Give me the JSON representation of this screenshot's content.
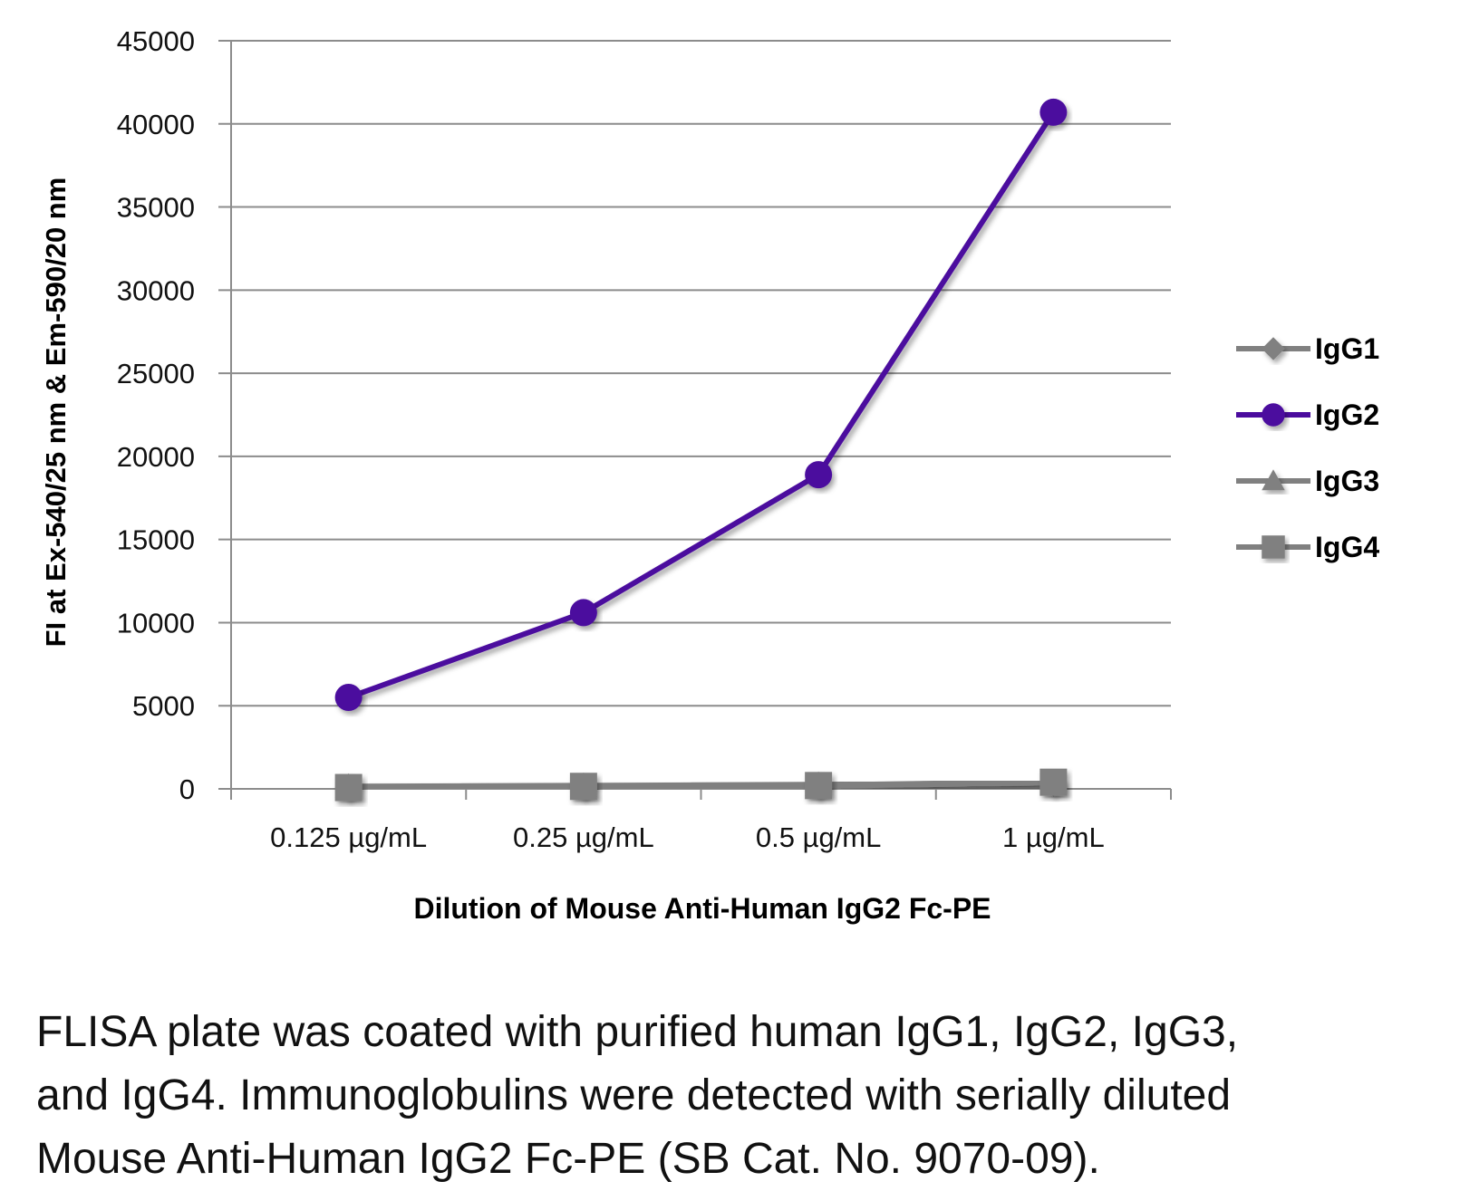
{
  "chart_data": {
    "type": "line",
    "title": "",
    "xlabel": "Dilution of Mouse Anti-Human IgG2 Fc-PE",
    "ylabel": "FI at Ex-540/25 nm & Em-590/20 nm",
    "categories": [
      "0.125 µg/mL",
      "0.25 µg/mL",
      "0.5 µg/mL",
      "1 µg/mL"
    ],
    "ylim": [
      0,
      45000
    ],
    "yticks": [
      0,
      5000,
      10000,
      15000,
      20000,
      25000,
      30000,
      35000,
      40000,
      45000
    ],
    "grid": true,
    "legend_position": "right",
    "series": [
      {
        "name": "IgG1",
        "marker": "diamond",
        "color": "#808080",
        "values": [
          100,
          150,
          200,
          350
        ]
      },
      {
        "name": "IgG2",
        "marker": "circle",
        "color": "#4B0C9E",
        "values": [
          5500,
          10600,
          18900,
          40700
        ]
      },
      {
        "name": "IgG3",
        "marker": "triangle",
        "color": "#808080",
        "values": [
          120,
          170,
          230,
          380
        ]
      },
      {
        "name": "IgG4",
        "marker": "square",
        "color": "#808080",
        "values": [
          80,
          150,
          200,
          400
        ]
      }
    ]
  },
  "caption": {
    "line1": "FLISA plate was coated with purified human IgG1, IgG2, IgG3,",
    "line2": "and IgG4. Immunoglobulins were detected with serially diluted",
    "line3": "Mouse Anti-Human IgG2 Fc-PE (SB Cat. No. 9070-09)."
  }
}
